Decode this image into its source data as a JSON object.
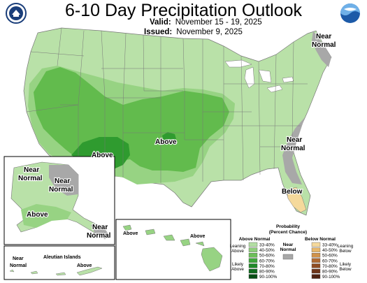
{
  "title": "6-10 Day Precipitation Outlook",
  "valid_label": "Valid:",
  "valid_value": "November 15 - 19, 2025",
  "issued_label": "Issued:",
  "issued_value": "November 9, 2025",
  "map_labels": {
    "near_normal_ne": "Near Normal",
    "near_normal_se": "Near Normal",
    "below_fl": "Below",
    "above_sw": "Above",
    "above_ok": "Above",
    "ak_near_normal_n1": "Near",
    "ak_near_normal_n2": "Normal",
    "ak_near_normal_ne": "Near Normal",
    "ak_above": "Above",
    "ak_near_normal_se": "Near Normal",
    "aleutian_title": "Aleutian Islands",
    "aleutian_near_normal": "Near Normal",
    "aleutian_above": "Above",
    "hi_above_w": "Above",
    "hi_above_e": "Above"
  },
  "legend": {
    "title": "Probability (Percent Chance)",
    "above_header": "Above Normal",
    "below_header": "Below Normal",
    "near_normal_header": "Near Normal",
    "leaning_above": "Leaning Above",
    "likely_above": "Likely Above",
    "leaning_below": "Leaning Below",
    "likely_below": "Likely Below",
    "bins": [
      "33-40%",
      "40-50%",
      "50-60%",
      "60-70%",
      "70-80%",
      "80-90%",
      "90-100%"
    ],
    "above_colors": [
      "#b3dfa3",
      "#8fcf7c",
      "#6cbf58",
      "#3ea63a",
      "#218a2a",
      "#0f6b1e",
      "#064d14"
    ],
    "below_colors": [
      "#f5d99b",
      "#e8b86b",
      "#d0924a",
      "#b06a32",
      "#8f4d23",
      "#6e3418",
      "#4e2110"
    ],
    "near_normal_color": "#a8a8a8"
  },
  "colors": {
    "above_33_40": "#b7e0a6",
    "above_40_50": "#97d383",
    "above_50_60": "#62bb4d",
    "above_60_70": "#2f9b2f",
    "near_normal": "#a8a8a8",
    "below_33_40": "#f5d99b",
    "water": "#ffffff"
  },
  "logos": {
    "left": "noaa-seal-icon",
    "right": "noaa-logo-icon"
  }
}
